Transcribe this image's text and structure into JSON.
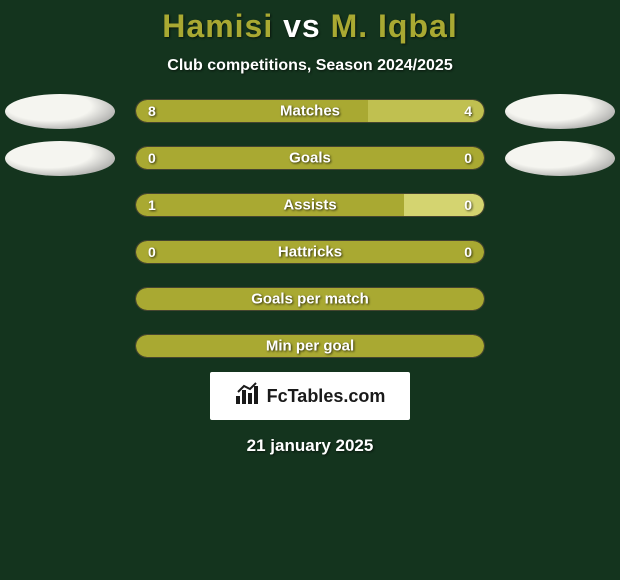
{
  "background_color": "#14341e",
  "title": {
    "player1": "Hamisi",
    "vs": "vs",
    "player2": "M. Iqbal",
    "color_player": "#a9a932",
    "color_vs": "#ffffff"
  },
  "subtitle": "Club competitions, Season 2024/2025",
  "player_icon": {
    "bg_color": "#f5f5f0",
    "shadow_color": "#808080"
  },
  "stats": [
    {
      "label": "Matches",
      "left_value": "8",
      "right_value": "4",
      "left_pct": 66.67,
      "right_pct": 33.33,
      "left_color": "#a9a932",
      "right_color": "#c0c050",
      "show_icons": true
    },
    {
      "label": "Goals",
      "left_value": "0",
      "right_value": "0",
      "left_pct": 50,
      "right_pct": 50,
      "left_color": "#a9a932",
      "right_color": "#a9a932",
      "show_icons": true
    },
    {
      "label": "Assists",
      "left_value": "1",
      "right_value": "0",
      "left_pct": 77,
      "right_pct": 23,
      "left_color": "#a9a932",
      "right_color": "#d4d470",
      "show_icons": false
    },
    {
      "label": "Hattricks",
      "left_value": "0",
      "right_value": "0",
      "left_pct": 50,
      "right_pct": 50,
      "left_color": "#a9a932",
      "right_color": "#a9a932",
      "show_icons": false
    },
    {
      "label": "Goals per match",
      "left_value": "",
      "right_value": "",
      "left_pct": 100,
      "right_pct": 0,
      "left_color": "#a9a932",
      "right_color": "#a9a932",
      "show_icons": false,
      "full_bar": true
    },
    {
      "label": "Min per goal",
      "left_value": "",
      "right_value": "",
      "left_pct": 100,
      "right_pct": 0,
      "left_color": "#a9a932",
      "right_color": "#a9a932",
      "show_icons": false,
      "full_bar": true
    }
  ],
  "brand": {
    "icon": "📊",
    "text": "FcTables.com"
  },
  "date": "21 january 2025"
}
